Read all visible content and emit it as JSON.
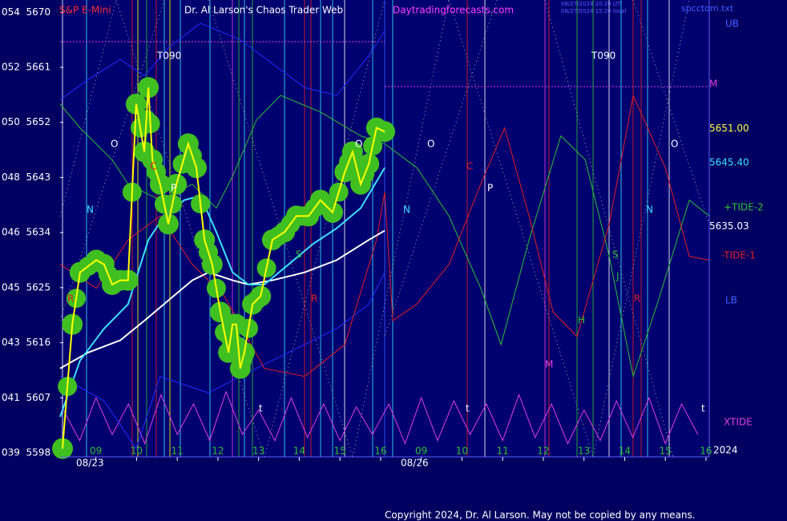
{
  "chart_data": {
    "type": "line",
    "symbol": "S&P E-Mini",
    "title": "Dr. Al Larson's Chaos Trader Web",
    "site": "Daytradingforecasts.com",
    "timestamps": [
      "08/27/2024 20:20 UT",
      "08/27/2024 15:20 local"
    ],
    "file": "spcctom.txt",
    "copyright": "Copyright 2024, Dr. Al Larson. May not be copied by any means.",
    "ylim": [
      5598,
      5672
    ],
    "yticks": [
      {
        "value": 5670,
        "label": "054  5670"
      },
      {
        "value": 5661,
        "label": "052  5661"
      },
      {
        "value": 5652,
        "label": "050  5652"
      },
      {
        "value": 5643,
        "label": "048  5643"
      },
      {
        "value": 5634,
        "label": "046  5634"
      },
      {
        "value": 5625,
        "label": "045  5625"
      },
      {
        "value": 5616,
        "label": "043  5616"
      },
      {
        "value": 5607,
        "label": "041  5607"
      },
      {
        "value": 5598,
        "label": "039  5598"
      }
    ],
    "xlim": [
      0.12,
      16.08
    ],
    "xticks": [
      {
        "value": 1,
        "label": "09"
      },
      {
        "value": 2,
        "label": "10"
      },
      {
        "value": 3,
        "label": "11"
      },
      {
        "value": 4,
        "label": "12"
      },
      {
        "value": 5,
        "label": "13"
      },
      {
        "value": 6,
        "label": "14"
      },
      {
        "value": 7,
        "label": "15"
      },
      {
        "value": 8,
        "label": "16"
      },
      {
        "value": 9,
        "label": "09"
      },
      {
        "value": 10,
        "label": "10"
      },
      {
        "value": 11,
        "label": "11"
      },
      {
        "value": 12,
        "label": "12"
      },
      {
        "value": 13,
        "label": "13"
      },
      {
        "value": 14,
        "label": "14"
      },
      {
        "value": 15,
        "label": "15"
      },
      {
        "value": 16,
        "label": "16"
      }
    ],
    "dates": [
      "08/23",
      "08/26"
    ],
    "price_labels": [
      {
        "value": 5651,
        "label": "5651.00",
        "color": "#ffff40"
      },
      {
        "value": 5645.4,
        "label": "5645.40",
        "color": "#40e0ff"
      },
      {
        "value": 5635.03,
        "label": "5635.03",
        "color": "#ffffff"
      }
    ],
    "right_labels": [
      "UB",
      "M",
      "+TIDE-2",
      "-TIDE-1",
      "LB",
      "XTIDE",
      "2024"
    ],
    "annotations": [
      "T090",
      "T090",
      "O",
      "O",
      "O",
      "O",
      "N",
      "N",
      "N",
      "P",
      "P",
      "C",
      "C",
      "R",
      "R",
      "R",
      "S",
      "S",
      "J",
      "H",
      "M",
      "t",
      "t",
      "t"
    ],
    "series": [
      {
        "name": "XTIDE",
        "color": "#e040e0",
        "x": [
          0.2,
          0.6,
          1.0,
          1.4,
          1.8,
          2.2,
          2.6,
          3.0,
          3.4,
          3.8,
          4.2,
          4.6,
          5.0,
          5.4,
          5.8,
          6.2,
          6.6,
          7.0,
          7.4,
          7.8,
          8.2,
          8.6,
          9.0,
          9.4,
          9.8,
          10.2,
          10.6,
          11.0,
          11.4,
          11.8,
          12.2,
          12.6,
          13.0,
          13.4,
          13.8,
          14.2,
          14.6,
          15.0,
          15.4,
          15.8
        ],
        "values": [
          5605,
          5600,
          5607,
          5601,
          5606,
          5599.5,
          5607.5,
          5601,
          5606,
          5600,
          5608,
          5601,
          5605,
          5600,
          5607,
          5600.5,
          5606,
          5600,
          5605.5,
          5601,
          5606,
          5599.5,
          5607,
          5600,
          5606.5,
          5601,
          5606,
          5600,
          5607.5,
          5600.5,
          5606,
          5599.5,
          5605,
          5600,
          5606.5,
          5600.5,
          5607,
          5599.5,
          5606,
          5601
        ]
      },
      {
        "name": "UB",
        "color": "#2030ff",
        "x": [
          0.12,
          0.81,
          1.6,
          2.19,
          2.78,
          3.57,
          4.55,
          5.34,
          6.13,
          6.92,
          7.71,
          8.1
        ],
        "values": [
          5655.7,
          5659.0,
          5662.3,
          5659.6,
          5664.2,
          5668.2,
          5665.5,
          5661.6,
          5657.7,
          5656.4,
          5662.9,
          5666.9
        ]
      },
      {
        "name": "LB",
        "color": "#2030ff",
        "x": [
          0.12,
          1.2,
          1.99,
          2.58,
          3.77,
          4.55,
          5.34,
          6.13,
          6.92,
          7.71,
          8.1
        ],
        "values": [
          5610.5,
          5606.5,
          5598.7,
          5610.5,
          5607.8,
          5610.5,
          5613.1,
          5615.7,
          5618.3,
          5622.3,
          5627.5
        ]
      },
      {
        "name": "+TIDE-2",
        "color": "#30c030",
        "x": [
          0.12,
          0.61,
          1.4,
          1.79,
          2.58,
          3.37,
          3.96,
          4.36,
          4.95,
          5.54,
          6.52,
          7.51,
          8.1,
          8.89,
          9.68,
          10.46,
          10.96,
          11.65,
          12.43,
          13.03,
          13.62,
          14.21,
          14.8,
          15.59,
          16.08
        ],
        "values": [
          5655.0,
          5651.1,
          5645.9,
          5641.9,
          5639.3,
          5641.9,
          5638.0,
          5643.2,
          5652.4,
          5656.4,
          5653.7,
          5649.8,
          5648.5,
          5644.6,
          5636.7,
          5624.9,
          5615.7,
          5632.8,
          5649.8,
          5645.9,
          5630.1,
          5610.5,
          5622.3,
          5639.3,
          5636.7
        ]
      },
      {
        "name": "-TIDE-1",
        "color": "#e02020",
        "x": [
          0.12,
          1.01,
          1.79,
          2.58,
          3.37,
          4.16,
          5.14,
          6.13,
          7.12,
          7.9,
          8.1,
          8.3,
          8.89,
          9.68,
          10.46,
          11.05,
          11.65,
          12.24,
          12.83,
          13.62,
          14.21,
          15.0,
          15.59,
          16.08
        ],
        "values": [
          5628.8,
          5624.9,
          5632.8,
          5636.7,
          5628.8,
          5623.6,
          5611.8,
          5610.5,
          5615.7,
          5632.8,
          5640.6,
          5619.6,
          5622.3,
          5628.8,
          5641.9,
          5651.1,
          5636.7,
          5621.0,
          5617.0,
          5635.4,
          5656.4,
          5644.6,
          5630.1,
          5629.5
        ]
      },
      {
        "name": "Average",
        "color": "#ffffff",
        "x": [
          0.12,
          0.81,
          1.6,
          2.19,
          2.78,
          3.37,
          3.77,
          4.36,
          4.75,
          5.34,
          6.13,
          6.92,
          7.71,
          8.1
        ],
        "values": [
          5611.8,
          5614.4,
          5616.4,
          5619.6,
          5622.9,
          5626.2,
          5627.5,
          5626.2,
          5625.5,
          5626.2,
          5627.5,
          5629.5,
          5632.8,
          5634.3
        ]
      },
      {
        "name": "Trend",
        "color": "#40e0ff",
        "x": [
          0.12,
          0.61,
          1.2,
          1.79,
          2.29,
          2.68,
          3.17,
          3.57,
          3.96,
          4.36,
          4.75,
          5.14,
          5.74,
          6.33,
          6.92,
          7.51,
          8.1
        ],
        "values": [
          5603.9,
          5613.1,
          5618.3,
          5622.3,
          5632.8,
          5636.7,
          5639.3,
          5640.0,
          5634.1,
          5627.5,
          5625.5,
          5625.5,
          5628.8,
          5632.1,
          5634.7,
          5638.0,
          5644.6
        ]
      },
      {
        "name": "Price",
        "color": "#ffff00",
        "x": [
          0.18,
          0.42,
          0.61,
          1.01,
          1.2,
          1.4,
          1.6,
          1.79,
          1.99,
          2.19,
          2.29,
          2.39,
          2.58,
          2.78,
          2.98,
          3.27,
          3.47,
          3.67,
          3.86,
          4.06,
          4.26,
          4.36,
          4.45,
          4.55,
          4.65,
          4.85,
          5.05,
          5.34,
          5.64,
          5.93,
          6.23,
          6.52,
          6.82,
          7.12,
          7.31,
          7.51,
          7.71,
          7.9,
          8.1
        ],
        "values": [
          5598.7,
          5619.0,
          5627.5,
          5629.5,
          5628.8,
          5625.5,
          5626.2,
          5626.2,
          5655.0,
          5647.2,
          5657.7,
          5645.9,
          5641.9,
          5635.4,
          5641.9,
          5648.5,
          5644.6,
          5632.8,
          5628.8,
          5621.0,
          5614.4,
          5619.0,
          5619.0,
          5611.8,
          5614.4,
          5622.3,
          5623.6,
          5632.8,
          5634.1,
          5636.7,
          5636.7,
          5639.3,
          5637.3,
          5643.9,
          5647.2,
          5641.9,
          5645.2,
          5651.1,
          5650.5
        ]
      }
    ]
  }
}
